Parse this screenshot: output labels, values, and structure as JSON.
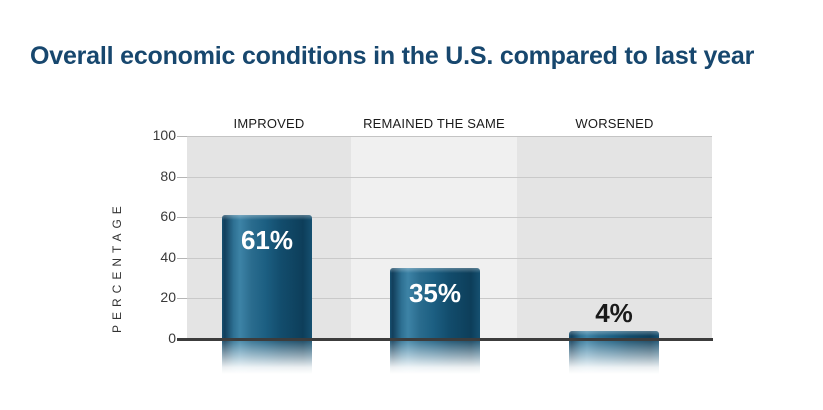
{
  "chart_data": {
    "type": "bar",
    "title": "Overall economic conditions in the U.S. compared to last year",
    "ylabel": "PERCENTAGE",
    "xlabel": "",
    "ylim": [
      0,
      100
    ],
    "yticks": [
      100,
      80,
      60,
      40,
      20,
      0
    ],
    "grid": "horizontal",
    "legend": "none",
    "categories": [
      "IMPROVED",
      "REMAINED THE SAME",
      "WORSENED"
    ],
    "values": [
      61,
      35,
      4
    ],
    "bars": [
      {
        "category": "IMPROVED",
        "value": 61,
        "label": "61%",
        "label_inside": true
      },
      {
        "category": "REMAINED THE SAME",
        "value": 35,
        "label": "35%",
        "label_inside": true
      },
      {
        "category": "WORSENED",
        "value": 4,
        "label": "4%",
        "label_inside": false
      }
    ],
    "colors": {
      "title_text": "#17476e",
      "bar_light": "#3d83a6",
      "bar_dark": "#0d3e5a",
      "panel_gray": "#e4e4e4",
      "panel_light": "#f0f0f0",
      "gridline": "#c9c9c9",
      "axis_line": "#3c3c3c",
      "tick_text": "#3a3a3a",
      "header_text": "#1b1b1b",
      "label_inside_text": "#ffffff",
      "label_outside_text": "#1a1a1a",
      "background": "#ffffff"
    }
  }
}
